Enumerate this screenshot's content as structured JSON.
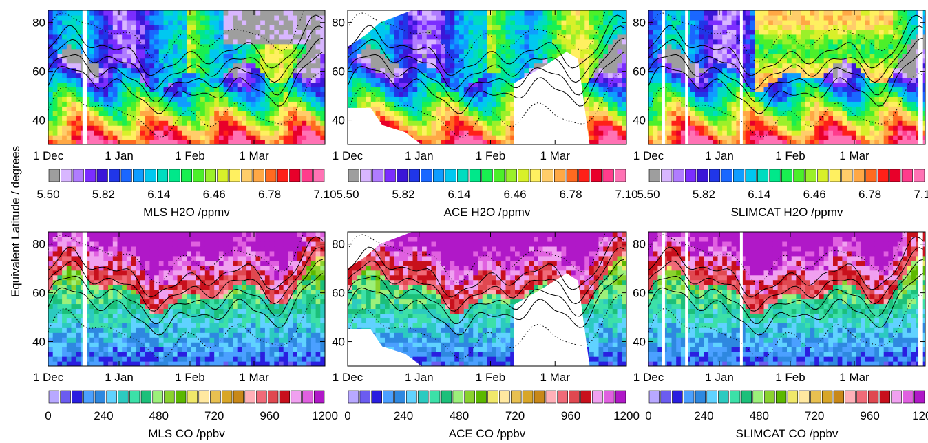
{
  "ylabel": "Equivalent Latitude / degrees",
  "x_ticks": [
    "1 Dec",
    "1 Jan",
    "1 Feb",
    "1 Mar"
  ],
  "y_ticks": [
    "40",
    "60",
    "80"
  ],
  "h2o_colors": [
    "#9e9e9e",
    "#d8b6ff",
    "#b07cff",
    "#7b2dff",
    "#3b16d8",
    "#2036e8",
    "#1a67ff",
    "#0f9dff",
    "#00c8f0",
    "#00dcc0",
    "#00e88a",
    "#19f050",
    "#4cf02a",
    "#9bf02a",
    "#d8f02a",
    "#fff060",
    "#ffcd6a",
    "#ffa845",
    "#ff6a20",
    "#ff2018",
    "#e8002a",
    "#ff3c8c",
    "#ff72b4"
  ],
  "co_colors": [
    "#b8a8ff",
    "#6b5cf0",
    "#2a1ee0",
    "#4ba0ff",
    "#2e88e0",
    "#60d2ff",
    "#2ccac0",
    "#3ce0a8",
    "#1cc07a",
    "#9cf07a",
    "#8ad22e",
    "#5cb800",
    "#f0e86a",
    "#ffe8a0",
    "#e8c050",
    "#d8a628",
    "#c88818",
    "#ffb0b8",
    "#f06a78",
    "#e04850",
    "#c8101c",
    "#f0a0f0",
    "#e060e0",
    "#b018c8"
  ],
  "chart_data": [
    {
      "type": "heatmap",
      "instrument": "MLS",
      "colorbar_label": "MLS H2O /ppmv",
      "colorbar_ticks": [
        "5.50",
        "5.82",
        "6.14",
        "6.46",
        "6.78",
        "7.10"
      ],
      "xlim": [
        "1 Dec",
        "31 Mar"
      ],
      "ylim": [
        30,
        85
      ],
      "missing": [
        [
          15,
          17
        ],
        [
          121,
          123
        ]
      ],
      "levels": [
        5.5,
        7.1
      ]
    },
    {
      "type": "heatmap",
      "instrument": "ACE",
      "colorbar_label": "ACE H2O /ppmv",
      "colorbar_ticks": [
        "5.50",
        "5.82",
        "6.14",
        "6.46",
        "6.78",
        "7.10"
      ],
      "xlim": [
        "1 Dec",
        "31 Mar"
      ],
      "ylim": [
        30,
        85
      ],
      "levels": [
        5.5,
        7.1
      ]
    },
    {
      "type": "heatmap",
      "instrument": "SLIMCAT",
      "colorbar_label": "SLIMCAT H2O /ppmv",
      "colorbar_ticks": [
        "5.50",
        "5.82",
        "6.14",
        "6.46",
        "6.78",
        "7.10"
      ],
      "xlim": [
        "1 Dec",
        "31 Mar"
      ],
      "ylim": [
        30,
        85
      ],
      "missing": [
        [
          6,
          7
        ],
        [
          16,
          17
        ],
        [
          40,
          41
        ],
        [
          118,
          120
        ]
      ],
      "levels": [
        5.5,
        7.1
      ]
    },
    {
      "type": "heatmap",
      "instrument": "MLS",
      "colorbar_label": "MLS CO /ppbv",
      "colorbar_ticks": [
        "0",
        "240",
        "480",
        "720",
        "960",
        "1200"
      ],
      "xlim": [
        "1 Dec",
        "31 Mar"
      ],
      "ylim": [
        30,
        85
      ],
      "missing": [
        [
          15,
          17
        ],
        [
          121,
          123
        ]
      ],
      "levels": [
        0,
        1200
      ]
    },
    {
      "type": "heatmap",
      "instrument": "ACE",
      "colorbar_label": "ACE CO /ppbv",
      "colorbar_ticks": [
        "0",
        "240",
        "480",
        "720",
        "960",
        "1200"
      ],
      "xlim": [
        "1 Dec",
        "31 Mar"
      ],
      "ylim": [
        30,
        85
      ],
      "levels": [
        0,
        1200
      ]
    },
    {
      "type": "heatmap",
      "instrument": "SLIMCAT",
      "colorbar_label": "SLIMCAT CO /ppbv",
      "colorbar_ticks": [
        "0",
        "240",
        "480",
        "720",
        "960",
        "1200"
      ],
      "xlim": [
        "1 Dec",
        "31 Mar"
      ],
      "ylim": [
        30,
        85
      ],
      "missing": [
        [
          6,
          7
        ],
        [
          16,
          17
        ],
        [
          40,
          41
        ],
        [
          118,
          120
        ]
      ],
      "levels": [
        0,
        1200
      ]
    }
  ]
}
